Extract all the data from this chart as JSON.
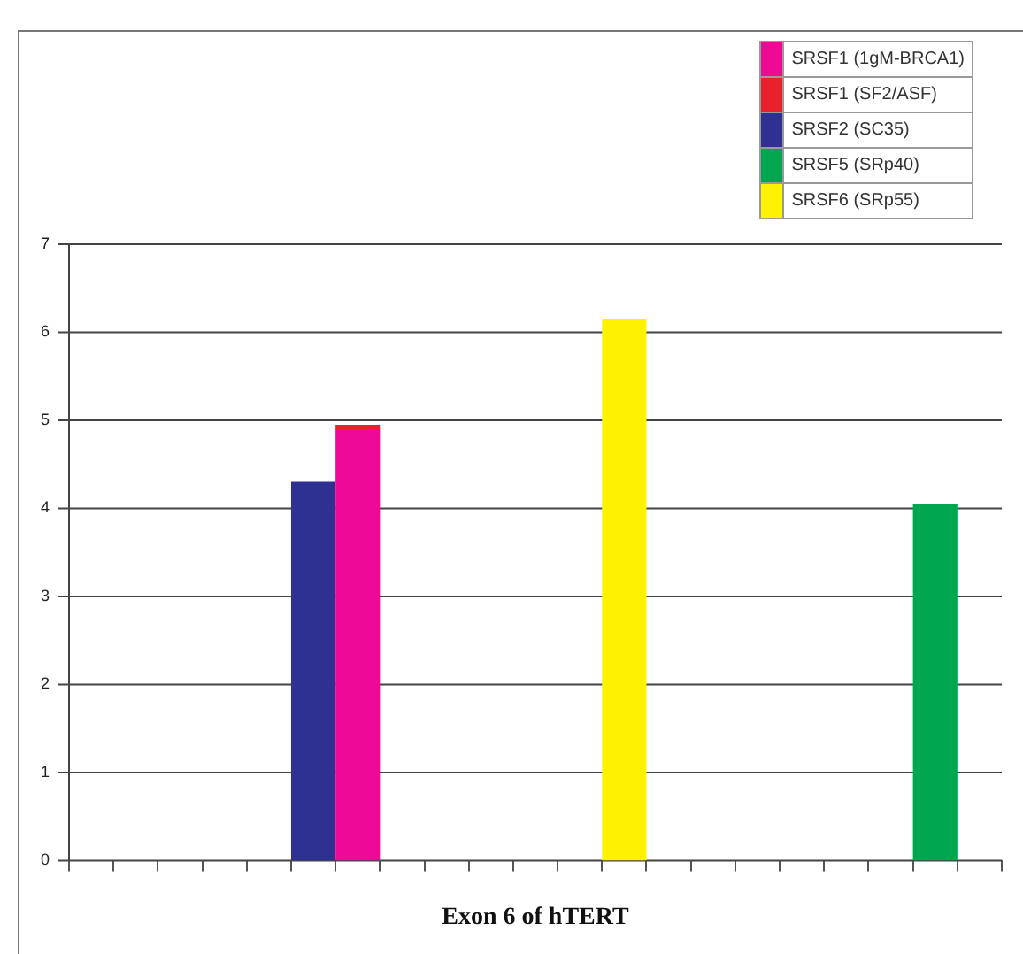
{
  "chart_data": {
    "type": "bar",
    "xlabel": "Exon 6 of hTERT",
    "categories": [
      null,
      null,
      null,
      null,
      null,
      null,
      null,
      null,
      null,
      null,
      null,
      null,
      null,
      null,
      null,
      null,
      null,
      null,
      null,
      null,
      null
    ],
    "series": [
      {
        "name": "SRSF1 (1gM-BRCA1)",
        "color": "#ee0a96",
        "values": [
          null,
          null,
          null,
          null,
          null,
          null,
          4.9,
          null,
          null,
          null,
          null,
          null,
          null,
          null,
          null,
          null,
          null,
          null,
          null,
          null,
          null
        ]
      },
      {
        "name": "SRSF1 (SF2/ASF)",
        "color": "#e8212b",
        "values": [
          null,
          null,
          null,
          null,
          null,
          null,
          0.05,
          null,
          null,
          null,
          null,
          null,
          null,
          null,
          null,
          null,
          null,
          null,
          null,
          null,
          null
        ]
      },
      {
        "name": "SRSF2 (SC35)",
        "color": "#2e3192",
        "values": [
          null,
          null,
          null,
          null,
          null,
          4.3,
          null,
          null,
          null,
          null,
          null,
          null,
          null,
          null,
          null,
          null,
          null,
          null,
          null,
          null,
          null
        ]
      },
      {
        "name": "SRSF5 (SRp40)",
        "color": "#00a650",
        "values": [
          null,
          null,
          null,
          null,
          null,
          null,
          null,
          null,
          null,
          null,
          null,
          null,
          null,
          null,
          null,
          null,
          null,
          null,
          null,
          4.05,
          null
        ]
      },
      {
        "name": "SRSF6 (SRp55)",
        "color": "#fff200",
        "values": [
          null,
          null,
          null,
          null,
          null,
          null,
          null,
          null,
          null,
          null,
          null,
          null,
          6.15,
          null,
          null,
          null,
          null,
          null,
          null,
          null,
          null
        ]
      }
    ],
    "stacked": true,
    "ylim": [
      0,
      7
    ],
    "yticks": [
      0,
      1,
      2,
      3,
      4,
      5,
      6,
      7
    ],
    "grid": "y",
    "legend": "top right",
    "tick_labels": "y"
  }
}
